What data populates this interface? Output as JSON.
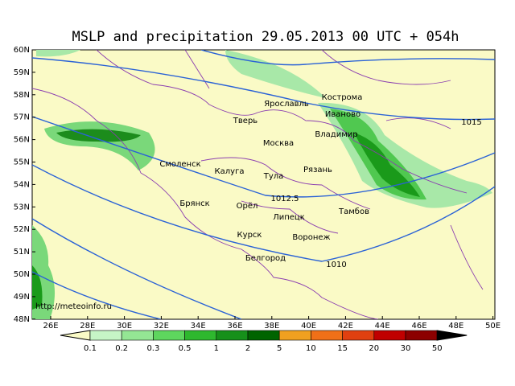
{
  "title": "MSLP and precipitation 29.05.2013 00 UTC + 054h",
  "website": "http://meteoinfo.ru",
  "latitude_labels": [
    "60N",
    "59N",
    "58N",
    "57N",
    "56N",
    "55N",
    "54N",
    "53N",
    "52N",
    "51N",
    "50N",
    "49N",
    "48N"
  ],
  "longitude_labels": [
    "26E",
    "28E",
    "30E",
    "32E",
    "34E",
    "36E",
    "38E",
    "40E",
    "42E",
    "44E",
    "46E",
    "48E",
    "50E"
  ],
  "cities": [
    "Кострома",
    "Ярославль",
    "Иваново",
    "Тверь",
    "Владимир",
    "Москва",
    "Смоленск",
    "Калуга",
    "Тула",
    "Рязань",
    "Брянск",
    "Орёл",
    "Тамбов",
    "Липецк",
    "Курск",
    "Воронеж",
    "Белгород"
  ],
  "isobar_labels": [
    "1015",
    "1012.5",
    "1010"
  ],
  "colorbar_labels": [
    "0.1",
    "0.2",
    "0.3",
    "0.5",
    "1",
    "2",
    "5",
    "10",
    "15",
    "20",
    "30",
    "50"
  ]
}
